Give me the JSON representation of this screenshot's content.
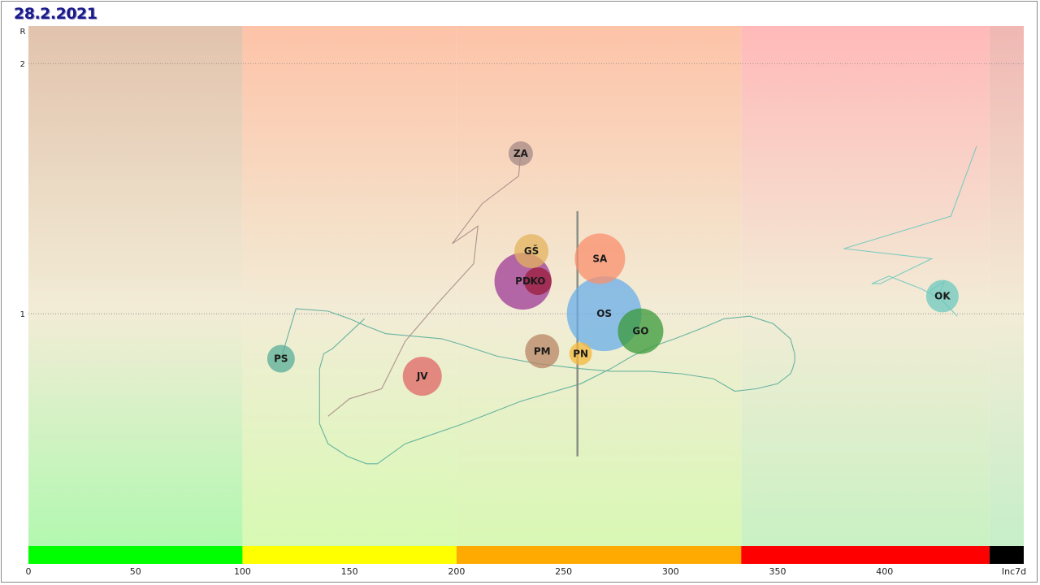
{
  "page": {
    "date": "28.2.2021"
  },
  "chart_data": {
    "type": "scatter",
    "title": "28.2.2021",
    "xlabel": "Inc7d",
    "ylabel": "R",
    "xlim": [
      0,
      465
    ],
    "ylim": [
      0,
      2.15
    ],
    "x_ticks": [
      0,
      50,
      100,
      150,
      200,
      250,
      300,
      350,
      400
    ],
    "y_ticks": [
      1,
      2
    ],
    "grid": "horizontal dotted at R=1 and R=2",
    "vertical_marker": {
      "x": 256.5,
      "y_range": [
        0.43,
        1.41
      ]
    },
    "color_bands": [
      {
        "from": 0,
        "to": 100,
        "bar": "#00ff00",
        "bg_top": "#e2c3ad",
        "bg_bottom": "#b2f8b0"
      },
      {
        "from": 100,
        "to": 200,
        "bar": "#ffff00",
        "bg_top": "#fdc3a8",
        "bg_bottom": "#d7fab3"
      },
      {
        "from": 200,
        "to": 333,
        "bar": "#ffaa00",
        "bg_top": "#fdc3a8",
        "bg_bottom": "#d8f8b4"
      },
      {
        "from": 333,
        "to": 449,
        "bar": "#ff0000",
        "bg_top": "#ffb9b9",
        "bg_bottom": "#c9f1c3"
      },
      {
        "from": 449,
        "to": 465,
        "bar": "#000000",
        "bg_top": "#f0b7b3",
        "bg_bottom": "#c6eec9"
      }
    ],
    "series": [
      {
        "name": "PS",
        "color": "#59ad9a",
        "size": 17,
        "x": 118,
        "y": 0.82,
        "trail": [
          [
            157,
            0.98
          ],
          [
            142,
            0.86
          ],
          [
            138,
            0.84
          ],
          [
            136,
            0.78
          ],
          [
            136,
            0.68
          ],
          [
            136,
            0.56
          ],
          [
            138,
            0.52
          ],
          [
            140,
            0.48
          ],
          [
            149,
            0.43
          ],
          [
            158,
            0.4
          ],
          [
            163,
            0.4
          ],
          [
            176,
            0.48
          ],
          [
            203,
            0.56
          ],
          [
            230,
            0.65
          ],
          [
            258,
            0.72
          ],
          [
            272,
            0.78
          ],
          [
            282,
            0.83
          ],
          [
            292,
            0.87
          ],
          [
            302,
            0.9
          ],
          [
            314,
            0.94
          ],
          [
            325,
            0.98
          ],
          [
            337,
            0.99
          ],
          [
            348,
            0.96
          ],
          [
            356,
            0.9
          ],
          [
            358,
            0.84
          ],
          [
            358,
            0.81
          ],
          [
            357,
            0.78
          ],
          [
            356,
            0.76
          ],
          [
            350,
            0.72
          ],
          [
            340,
            0.7
          ],
          [
            330,
            0.69
          ],
          [
            320,
            0.74
          ],
          [
            305,
            0.76
          ],
          [
            290,
            0.77
          ],
          [
            280,
            0.77
          ],
          [
            272,
            0.77
          ],
          [
            258,
            0.78
          ],
          [
            238,
            0.8
          ],
          [
            219,
            0.83
          ],
          [
            201,
            0.88
          ],
          [
            193,
            0.9
          ],
          [
            180,
            0.91
          ],
          [
            167,
            0.92
          ],
          [
            158,
            0.95
          ],
          [
            150,
            0.98
          ],
          [
            140,
            1.01
          ],
          [
            125,
            1.02
          ],
          [
            118,
            0.82
          ]
        ]
      },
      {
        "name": "JV",
        "color": "#e06666",
        "size": 24,
        "x": 184,
        "y": 0.75
      },
      {
        "name": "ZA",
        "color": "#a58a86",
        "size": 15,
        "x": 230,
        "y": 1.64,
        "trail": [
          [
            140,
            0.59
          ],
          [
            150,
            0.66
          ],
          [
            165,
            0.7
          ],
          [
            176,
            0.89
          ],
          [
            191,
            1.04
          ],
          [
            208,
            1.2
          ],
          [
            210,
            1.35
          ],
          [
            198,
            1.28
          ],
          [
            212,
            1.44
          ],
          [
            229,
            1.55
          ],
          [
            230,
            1.64
          ]
        ]
      },
      {
        "name": "GŠ",
        "color": "#e3b35d",
        "size": 21,
        "x": 235,
        "y": 1.25
      },
      {
        "name": "PD",
        "color": "#9d3a95",
        "size": 35,
        "x": 231,
        "y": 1.13
      },
      {
        "name": "KO",
        "color": "#9b1c3b",
        "size": 17,
        "x": 238,
        "y": 1.13
      },
      {
        "name": "SA",
        "color": "#fa8f6c",
        "size": 31,
        "x": 267,
        "y": 1.22
      },
      {
        "name": "OS",
        "color": "#6aaee8",
        "size": 46,
        "x": 269,
        "y": 1.0
      },
      {
        "name": "GO",
        "color": "#3a9a3a",
        "size": 28,
        "x": 286,
        "y": 0.93
      },
      {
        "name": "PM",
        "color": "#b88465",
        "size": 21,
        "x": 240,
        "y": 0.85
      },
      {
        "name": "PN",
        "color": "#f4b83c",
        "size": 14,
        "x": 258,
        "y": 0.84
      },
      {
        "name": "OK",
        "color": "#6ec9bf",
        "size": 20,
        "x": 427,
        "y": 1.07,
        "trail": [
          [
            421,
            1.09
          ],
          [
            428,
            1.13
          ],
          [
            425,
            1.07
          ],
          [
            434,
            0.99
          ],
          [
            426,
            1.06
          ],
          [
            417,
            1.1
          ],
          [
            402,
            1.15
          ],
          [
            394,
            1.12
          ],
          [
            398,
            1.12
          ],
          [
            422,
            1.22
          ],
          [
            381,
            1.26
          ],
          [
            431,
            1.39
          ],
          [
            443,
            1.67
          ]
        ]
      }
    ]
  }
}
